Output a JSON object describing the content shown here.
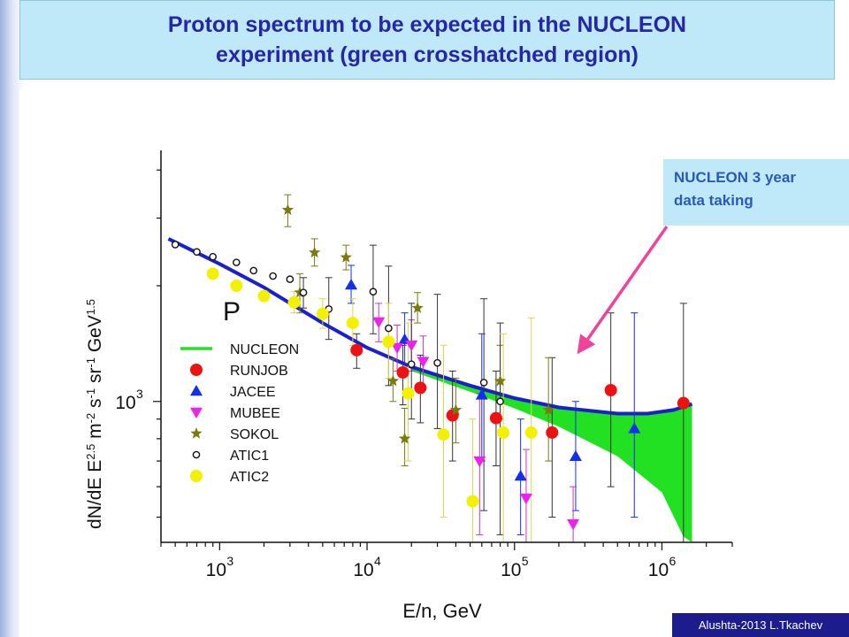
{
  "slide": {
    "title_lines": [
      "Proton spectrum  to be expected in the NUCLEON",
      "experiment (green crosshatched region)"
    ],
    "callout_lines": [
      "NUCLEON 3 year",
      "data taking"
    ],
    "credit": "Alushta-2013  L.Tkachev"
  },
  "colors": {
    "title_text": "#2626a8",
    "title_bg": "#bfe9f8",
    "callout_text": "#2a5ab8",
    "arrow": "#f0449a",
    "credit_bg": "#1c1c8c"
  },
  "chart_data": {
    "type": "scatter",
    "xlabel": "E/n, GeV",
    "ylabel": "dN/dE E^2.5 m^-2 s^-1 sr^-1 GeV^1.5",
    "xscale": "log",
    "yscale": "log",
    "xlim": [
      400,
      3000000
    ],
    "ylim": [
      430,
      4500
    ],
    "x_ticks": [
      {
        "value": 1000,
        "base": "10",
        "exp": "3"
      },
      {
        "value": 10000,
        "base": "10",
        "exp": "4"
      },
      {
        "value": 100000,
        "base": "10",
        "exp": "5"
      },
      {
        "value": 1000000,
        "base": "10",
        "exp": "6"
      }
    ],
    "y_ticks": [
      {
        "value": 1000,
        "base": "10",
        "exp": "3"
      }
    ],
    "particle_label": "P",
    "legend": {
      "position": "lower-left",
      "entries": [
        {
          "name": "NUCLEON",
          "marker": "line",
          "color": "#22e022"
        },
        {
          "name": "RUNJOB",
          "marker": "circle",
          "color": "#ee1111"
        },
        {
          "name": "JACEE",
          "marker": "triangle-up",
          "color": "#1030ee"
        },
        {
          "name": "MUBEE",
          "marker": "triangle-down",
          "color": "#ee22ee"
        },
        {
          "name": "SOKOL",
          "marker": "star",
          "color": "#7a7a10"
        },
        {
          "name": "ATIC1",
          "marker": "open-circle",
          "color": "#111111"
        },
        {
          "name": "ATIC2",
          "marker": "circle",
          "color": "#f2f200"
        }
      ]
    },
    "nucleon_band": {
      "color": "#1a20d0",
      "fill": "#22e022",
      "upper": [
        [
          450,
          2650
        ],
        [
          1000,
          2280
        ],
        [
          2000,
          1980
        ],
        [
          5000,
          1600
        ],
        [
          10000,
          1380
        ],
        [
          20000,
          1230
        ],
        [
          50000,
          1100
        ],
        [
          100000,
          1020
        ],
        [
          200000,
          965
        ],
        [
          500000,
          930
        ],
        [
          800000,
          930
        ],
        [
          1200000,
          950
        ],
        [
          1600000,
          985
        ]
      ],
      "lower": [
        [
          20000,
          1200
        ],
        [
          50000,
          1060
        ],
        [
          100000,
          960
        ],
        [
          200000,
          860
        ],
        [
          500000,
          720
        ],
        [
          1000000,
          580
        ],
        [
          1400000,
          445
        ],
        [
          1600000,
          420
        ]
      ]
    },
    "series": [
      {
        "name": "RUNJOB",
        "marker": "circle",
        "color": "#ee1111",
        "err_color": "#333333",
        "points": [
          {
            "x": 8500,
            "y": 1360,
            "lo": 1220,
            "hi": 1500
          },
          {
            "x": 17500,
            "y": 1190,
            "lo": 980,
            "hi": 1400
          },
          {
            "x": 23000,
            "y": 1085,
            "lo": 880,
            "hi": 1320
          },
          {
            "x": 38000,
            "y": 920,
            "lo": 700,
            "hi": 1200
          },
          {
            "x": 75000,
            "y": 905,
            "lo": 680,
            "hi": 1200
          },
          {
            "x": 180000,
            "y": 830,
            "lo": 500,
            "hi": 1300
          },
          {
            "x": 450000,
            "y": 1070,
            "lo": 600,
            "hi": 1700
          },
          {
            "x": 1400000,
            "y": 990,
            "lo": 420,
            "hi": 1800
          }
        ]
      },
      {
        "name": "JACEE",
        "marker": "triangle-up",
        "color": "#1030ee",
        "err_color": "#1030ee",
        "points": [
          {
            "x": 7800,
            "y": 2010,
            "lo": 1800,
            "hi": 2260
          },
          {
            "x": 18000,
            "y": 1450,
            "lo": 1250,
            "hi": 1700
          },
          {
            "x": 60000,
            "y": 1040,
            "lo": 700,
            "hi": 1500
          },
          {
            "x": 110000,
            "y": 640,
            "lo": 450,
            "hi": 900
          },
          {
            "x": 260000,
            "y": 720,
            "lo": 520,
            "hi": 1000
          },
          {
            "x": 650000,
            "y": 850,
            "lo": 500,
            "hi": 1700
          }
        ]
      },
      {
        "name": "MUBEE",
        "marker": "triangle-down",
        "color": "#ee22ee",
        "err_color": "#cc33cc",
        "points": [
          {
            "x": 12000,
            "y": 1610,
            "lo": 1430,
            "hi": 1800
          },
          {
            "x": 16000,
            "y": 1380,
            "lo": 1200,
            "hi": 1580
          },
          {
            "x": 20000,
            "y": 1400,
            "lo": 1200,
            "hi": 1630
          },
          {
            "x": 24000,
            "y": 1270,
            "lo": 1080,
            "hi": 1480
          },
          {
            "x": 58000,
            "y": 700,
            "lo": 450,
            "hi": 1050
          },
          {
            "x": 120000,
            "y": 560,
            "lo": 430,
            "hi": 750
          },
          {
            "x": 250000,
            "y": 480,
            "lo": 430,
            "hi": 600
          }
        ]
      },
      {
        "name": "SOKOL",
        "marker": "star",
        "color": "#7a7a10",
        "err_color": "#7a7a10",
        "points": [
          {
            "x": 2900,
            "y": 3150,
            "lo": 2850,
            "hi": 3450
          },
          {
            "x": 3500,
            "y": 1920,
            "lo": 1700,
            "hi": 2150
          },
          {
            "x": 4400,
            "y": 2440,
            "lo": 2250,
            "hi": 2650
          },
          {
            "x": 7200,
            "y": 2370,
            "lo": 2200,
            "hi": 2550
          },
          {
            "x": 15000,
            "y": 1130,
            "lo": 1000,
            "hi": 1290
          },
          {
            "x": 18000,
            "y": 800,
            "lo": 680,
            "hi": 960
          },
          {
            "x": 22000,
            "y": 1750,
            "lo": 1600,
            "hi": 1920
          },
          {
            "x": 40000,
            "y": 950,
            "lo": 780,
            "hi": 1150
          },
          {
            "x": 80000,
            "y": 1130,
            "lo": 900,
            "hi": 1400
          },
          {
            "x": 170000,
            "y": 950,
            "lo": 700,
            "hi": 1300
          }
        ]
      },
      {
        "name": "ATIC1",
        "marker": "open-circle",
        "color": "#111111",
        "err_color": "#333333",
        "points": [
          {
            "x": 500,
            "y": 2560
          },
          {
            "x": 700,
            "y": 2450
          },
          {
            "x": 900,
            "y": 2380
          },
          {
            "x": 1300,
            "y": 2300
          },
          {
            "x": 1700,
            "y": 2190
          },
          {
            "x": 2300,
            "y": 2120
          },
          {
            "x": 3000,
            "y": 2080
          },
          {
            "x": 3700,
            "y": 1920,
            "lo": 1750,
            "hi": 2100
          },
          {
            "x": 5500,
            "y": 1740,
            "lo": 1450,
            "hi": 2100
          },
          {
            "x": 11000,
            "y": 1930,
            "lo": 1500,
            "hi": 2550
          },
          {
            "x": 14000,
            "y": 1550,
            "lo": 1100,
            "hi": 2250
          },
          {
            "x": 20000,
            "y": 1250,
            "lo": 900,
            "hi": 1800
          },
          {
            "x": 30000,
            "y": 1260,
            "lo": 850,
            "hi": 1900
          },
          {
            "x": 62000,
            "y": 1120,
            "lo": 520,
            "hi": 1850
          },
          {
            "x": 80000,
            "y": 1000,
            "lo": 450,
            "hi": 1600
          }
        ]
      },
      {
        "name": "ATIC2",
        "marker": "circle",
        "color": "#f2f200",
        "err_color": "#d8d850",
        "points": [
          {
            "x": 900,
            "y": 2150
          },
          {
            "x": 1300,
            "y": 2000
          },
          {
            "x": 2000,
            "y": 1880
          },
          {
            "x": 3200,
            "y": 1810,
            "lo": 1700,
            "hi": 1930
          },
          {
            "x": 5000,
            "y": 1690,
            "lo": 1550,
            "hi": 1850
          },
          {
            "x": 8000,
            "y": 1600,
            "lo": 1400,
            "hi": 1850
          },
          {
            "x": 14000,
            "y": 1430,
            "lo": 1150,
            "hi": 1800
          },
          {
            "x": 19000,
            "y": 1050,
            "lo": 700,
            "hi": 1600
          },
          {
            "x": 33000,
            "y": 820,
            "lo": 500,
            "hi": 1400
          },
          {
            "x": 52000,
            "y": 550,
            "lo": 430,
            "hi": 900
          },
          {
            "x": 84000,
            "y": 830,
            "lo": 430,
            "hi": 1500
          },
          {
            "x": 130000,
            "y": 830,
            "lo": 430,
            "hi": 1650
          }
        ]
      }
    ]
  }
}
